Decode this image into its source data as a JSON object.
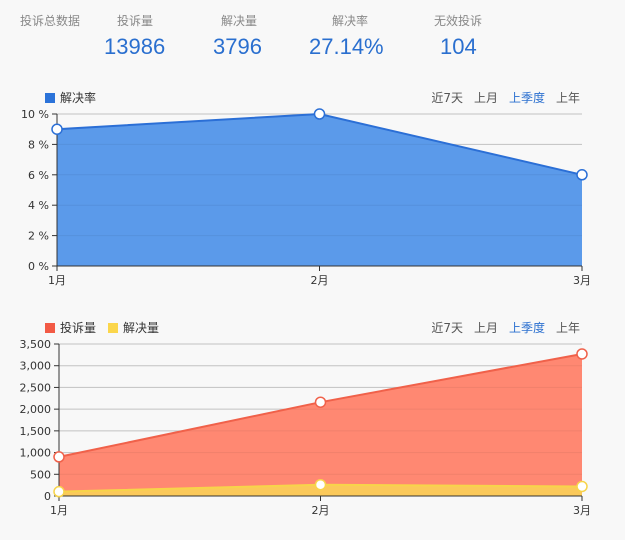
{
  "summary": {
    "title": "投诉总数据",
    "stats": [
      {
        "label": "投诉量",
        "value": "13986"
      },
      {
        "label": "解决量",
        "value": "3796"
      },
      {
        "label": "解决率",
        "value": "27.14%"
      },
      {
        "label": "无效投诉",
        "value": "104"
      }
    ]
  },
  "range_options": [
    "近7天",
    "上月",
    "上季度",
    "上年"
  ],
  "active_range": "上季度",
  "colors": {
    "accent": "#2a6fcf",
    "rate_line": "#2b6fd6",
    "rate_fill": "#5b9aea",
    "complaints_line": "#f0614a",
    "complaints_fill": "#ff8872",
    "resolved_line": "#f7d44a",
    "resolved_fill": "#fbc95a"
  },
  "chart_data": [
    {
      "type": "area",
      "title": "",
      "legend": [
        "解决率"
      ],
      "legend_position": "top-left",
      "categories": [
        "1月",
        "2月",
        "3月"
      ],
      "series": [
        {
          "name": "解决率",
          "values": [
            9,
            10,
            6
          ]
        }
      ],
      "yticks": [
        "0 %",
        "2 %",
        "4 %",
        "6 %",
        "8 %",
        "10 %"
      ],
      "ylim": [
        0,
        10
      ],
      "grid": true,
      "xlabel": "",
      "ylabel": ""
    },
    {
      "type": "area",
      "title": "",
      "legend": [
        "投诉量",
        "解决量"
      ],
      "legend_position": "top-left",
      "categories": [
        "1月",
        "2月",
        "3月"
      ],
      "series": [
        {
          "name": "投诉量",
          "values": [
            900,
            2160,
            3270
          ]
        },
        {
          "name": "解决量",
          "values": [
            100,
            260,
            220
          ]
        }
      ],
      "yticks": [
        "0",
        "500",
        "1,000",
        "1,500",
        "2,000",
        "2,500",
        "3,000",
        "3,500"
      ],
      "ylim": [
        0,
        3500
      ],
      "grid": true,
      "xlabel": "",
      "ylabel": ""
    }
  ]
}
